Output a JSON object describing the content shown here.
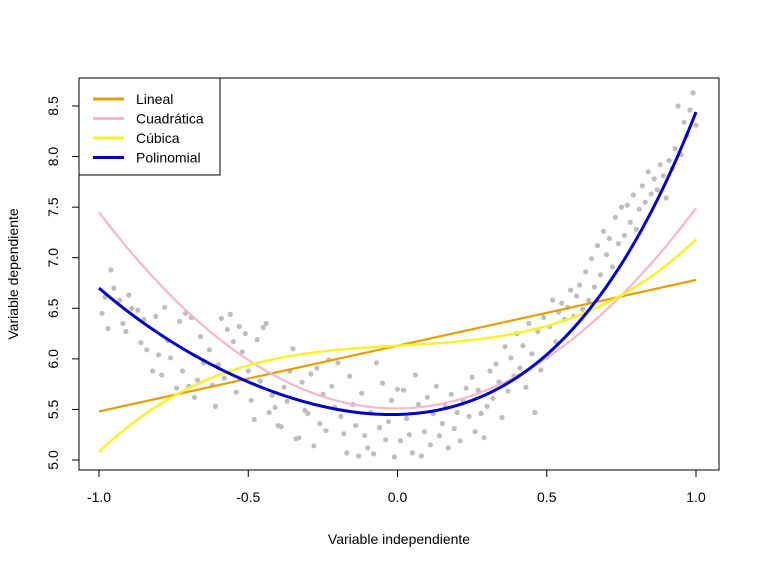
{
  "chart_data": {
    "type": "scatter",
    "title": "",
    "xlabel": "Variable independiente",
    "ylabel": "Variable dependiente",
    "xlim": [
      -1.0,
      1.0
    ],
    "ylim": [
      5.0,
      8.5
    ],
    "x_ticks": [
      -1.0,
      -0.5,
      0.0,
      0.5,
      1.0
    ],
    "x_tick_labels": [
      "-1.0",
      "-0.5",
      "0.0",
      "0.5",
      "1.0"
    ],
    "y_ticks": [
      5.0,
      5.5,
      6.0,
      6.5,
      7.0,
      7.5,
      8.0,
      8.5
    ],
    "y_tick_labels": [
      "5.0",
      "5.5",
      "6.0",
      "6.5",
      "7.0",
      "7.5",
      "8.0",
      "8.5"
    ],
    "grid": false,
    "legend_position": "top-left",
    "points_color": "#bebebe",
    "points": [
      [
        -0.99,
        6.45
      ],
      [
        -0.98,
        6.61
      ],
      [
        -0.97,
        6.3
      ],
      [
        -0.96,
        6.88
      ],
      [
        -0.95,
        6.7
      ],
      [
        -0.93,
        6.58
      ],
      [
        -0.92,
        6.35
      ],
      [
        -0.91,
        6.27
      ],
      [
        -0.9,
        6.63
      ],
      [
        -0.89,
        6.5
      ],
      [
        -0.87,
        6.48
      ],
      [
        -0.86,
        6.16
      ],
      [
        -0.85,
        6.39
      ],
      [
        -0.84,
        6.09
      ],
      [
        -0.82,
        5.88
      ],
      [
        -0.81,
        6.42
      ],
      [
        -0.8,
        6.04
      ],
      [
        -0.79,
        5.84
      ],
      [
        -0.78,
        6.51
      ],
      [
        -0.77,
        6.18
      ],
      [
        -0.76,
        6.01
      ],
      [
        -0.74,
        5.71
      ],
      [
        -0.73,
        6.37
      ],
      [
        -0.72,
        5.88
      ],
      [
        -0.71,
        6.45
      ],
      [
        -0.7,
        5.73
      ],
      [
        -0.69,
        6.41
      ],
      [
        -0.68,
        5.62
      ],
      [
        -0.67,
        5.79
      ],
      [
        -0.66,
        6.22
      ],
      [
        -0.65,
        5.96
      ],
      [
        -0.63,
        6.09
      ],
      [
        -0.62,
        5.74
      ],
      [
        -0.61,
        5.53
      ],
      [
        -0.6,
        5.94
      ],
      [
        -0.59,
        6.4
      ],
      [
        -0.58,
        5.81
      ],
      [
        -0.57,
        6.29
      ],
      [
        -0.56,
        6.44
      ],
      [
        -0.55,
        6.17
      ],
      [
        -0.54,
        5.67
      ],
      [
        -0.53,
        6.32
      ],
      [
        -0.52,
        6.07
      ],
      [
        -0.51,
        6.25
      ],
      [
        -0.5,
        5.88
      ],
      [
        -0.49,
        5.59
      ],
      [
        -0.48,
        5.4
      ],
      [
        -0.47,
        6.19
      ],
      [
        -0.46,
        5.78
      ],
      [
        -0.45,
        6.31
      ],
      [
        -0.44,
        6.35
      ],
      [
        -0.43,
        5.47
      ],
      [
        -0.42,
        5.64
      ],
      [
        -0.41,
        5.52
      ],
      [
        -0.4,
        5.34
      ],
      [
        -0.39,
        5.33
      ],
      [
        -0.38,
        5.72
      ],
      [
        -0.37,
        5.58
      ],
      [
        -0.36,
        5.88
      ],
      [
        -0.35,
        6.1
      ],
      [
        -0.34,
        5.21
      ],
      [
        -0.33,
        5.22
      ],
      [
        -0.32,
        5.77
      ],
      [
        -0.31,
        5.49
      ],
      [
        -0.3,
        5.46
      ],
      [
        -0.29,
        5.85
      ],
      [
        -0.28,
        5.14
      ],
      [
        -0.27,
        5.91
      ],
      [
        -0.26,
        5.36
      ],
      [
        -0.25,
        5.65
      ],
      [
        -0.24,
        5.29
      ],
      [
        -0.23,
        5.99
      ],
      [
        -0.22,
        5.73
      ],
      [
        -0.21,
        5.52
      ],
      [
        -0.2,
        5.96
      ],
      [
        -0.19,
        5.43
      ],
      [
        -0.18,
        5.26
      ],
      [
        -0.17,
        5.07
      ],
      [
        -0.16,
        5.83
      ],
      [
        -0.15,
        5.55
      ],
      [
        -0.14,
        5.34
      ],
      [
        -0.13,
        5.04
      ],
      [
        -0.12,
        5.66
      ],
      [
        -0.11,
        5.24
      ],
      [
        -0.1,
        5.12
      ],
      [
        -0.09,
        5.47
      ],
      [
        -0.08,
        5.06
      ],
      [
        -0.07,
        5.96
      ],
      [
        -0.06,
        5.32
      ],
      [
        -0.05,
        5.76
      ],
      [
        -0.04,
        5.2
      ],
      [
        -0.03,
        5.38
      ],
      [
        -0.02,
        5.59
      ],
      [
        -0.01,
        5.03
      ],
      [
        0.0,
        5.7
      ],
      [
        0.01,
        5.19
      ],
      [
        0.02,
        5.69
      ],
      [
        0.03,
        5.41
      ],
      [
        0.04,
        5.25
      ],
      [
        0.05,
        5.07
      ],
      [
        0.06,
        5.84
      ],
      [
        0.07,
        5.55
      ],
      [
        0.08,
        5.04
      ],
      [
        0.09,
        5.28
      ],
      [
        0.1,
        5.62
      ],
      [
        0.11,
        5.15
      ],
      [
        0.12,
        5.46
      ],
      [
        0.13,
        5.73
      ],
      [
        0.14,
        5.24
      ],
      [
        0.15,
        5.36
      ],
      [
        0.16,
        5.53
      ],
      [
        0.17,
        5.12
      ],
      [
        0.18,
        5.65
      ],
      [
        0.19,
        5.31
      ],
      [
        0.2,
        5.47
      ],
      [
        0.21,
        5.19
      ],
      [
        0.22,
        5.58
      ],
      [
        0.23,
        5.71
      ],
      [
        0.24,
        5.43
      ],
      [
        0.25,
        5.82
      ],
      [
        0.26,
        5.28
      ],
      [
        0.27,
        5.69
      ],
      [
        0.28,
        5.46
      ],
      [
        0.29,
        5.22
      ],
      [
        0.3,
        5.53
      ],
      [
        0.31,
        5.88
      ],
      [
        0.32,
        5.61
      ],
      [
        0.33,
        5.95
      ],
      [
        0.34,
        5.77
      ],
      [
        0.35,
        5.42
      ],
      [
        0.36,
        6.12
      ],
      [
        0.37,
        5.68
      ],
      [
        0.38,
        6.01
      ],
      [
        0.39,
        5.83
      ],
      [
        0.4,
        6.25
      ],
      [
        0.41,
        5.91
      ],
      [
        0.42,
        6.13
      ],
      [
        0.43,
        5.72
      ],
      [
        0.44,
        6.35
      ],
      [
        0.45,
        6.05
      ],
      [
        0.46,
        5.47
      ],
      [
        0.47,
        6.27
      ],
      [
        0.48,
        5.89
      ],
      [
        0.49,
        6.41
      ],
      [
        0.5,
        6.02
      ],
      [
        0.51,
        6.32
      ],
      [
        0.52,
        6.58
      ],
      [
        0.53,
        6.17
      ],
      [
        0.54,
        6.46
      ],
      [
        0.55,
        6.55
      ],
      [
        0.56,
        6.39
      ],
      [
        0.57,
        6.51
      ],
      [
        0.58,
        6.68
      ],
      [
        0.59,
        6.42
      ],
      [
        0.6,
        6.62
      ],
      [
        0.61,
        6.73
      ],
      [
        0.62,
        6.49
      ],
      [
        0.63,
        6.86
      ],
      [
        0.64,
        6.58
      ],
      [
        0.65,
        6.99
      ],
      [
        0.66,
        6.71
      ],
      [
        0.67,
        7.12
      ],
      [
        0.68,
        6.83
      ],
      [
        0.69,
        7.26
      ],
      [
        0.7,
        7.03
      ],
      [
        0.71,
        7.19
      ],
      [
        0.72,
        6.91
      ],
      [
        0.73,
        7.4
      ],
      [
        0.74,
        7.14
      ],
      [
        0.75,
        7.5
      ],
      [
        0.76,
        7.22
      ],
      [
        0.77,
        7.52
      ],
      [
        0.78,
        7.35
      ],
      [
        0.79,
        7.62
      ],
      [
        0.8,
        7.28
      ],
      [
        0.81,
        7.48
      ],
      [
        0.82,
        7.71
      ],
      [
        0.83,
        7.55
      ],
      [
        0.84,
        7.85
      ],
      [
        0.85,
        7.63
      ],
      [
        0.86,
        7.78
      ],
      [
        0.87,
        7.67
      ],
      [
        0.88,
        7.92
      ],
      [
        0.89,
        7.81
      ],
      [
        0.9,
        7.59
      ],
      [
        0.91,
        7.96
      ],
      [
        0.92,
        7.88
      ],
      [
        0.93,
        8.08
      ],
      [
        0.94,
        8.5
      ],
      [
        0.95,
        8.02
      ],
      [
        0.96,
        8.34
      ],
      [
        0.97,
        8.21
      ],
      [
        0.98,
        8.46
      ],
      [
        0.99,
        8.63
      ],
      [
        1.0,
        8.31
      ]
    ],
    "series": [
      {
        "name": "Lineal",
        "color": "#e69f00",
        "width": 2.2,
        "coef": [
          6.13,
          0.65,
          0,
          0,
          0
        ]
      },
      {
        "name": "Cuadrática",
        "color": "#f4b8c8",
        "width": 2.2,
        "coef": [
          5.51,
          0.02,
          1.96,
          0,
          0
        ]
      },
      {
        "name": "Cúbica",
        "color": "#f7f22a",
        "width": 2.5,
        "coef": [
          6.13,
          0.17,
          0,
          0.88,
          0
        ]
      },
      {
        "name": "Polinomial",
        "color": "#0000cd",
        "width": 3,
        "coef": [
          5.45,
          0.07,
          1.73,
          0.8,
          0.39
        ]
      }
    ]
  }
}
